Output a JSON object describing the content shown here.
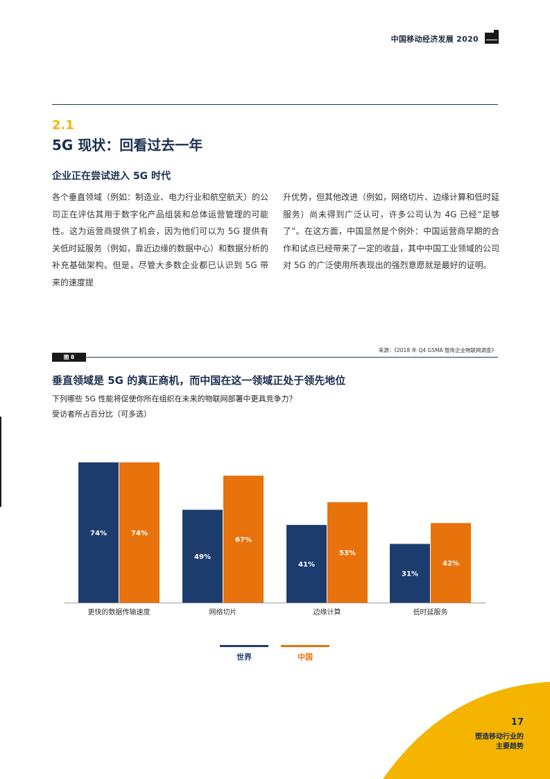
{
  "header": {
    "title": "中国移动经济发展 2020"
  },
  "section": {
    "number": "2.1",
    "title": "5G 现状：回看过去一年",
    "subheading": "企业正在尝试进入 5G 时代"
  },
  "body": {
    "col1": "各个垂直领域（例如：制造业、电力行业和航空航天）的公司正在评估其用于数字化产品组装和总体运营管理的可能性。这为运营商提供了机会，因为他们可以为 5G 提供有关低时延服务（例如，靠近边缘的数据中心）和数据分析的补充基础架构。但是，尽管大多数企业都已认识到 5G 带来的速度提",
    "col2": "升优势，但其他改进（例如，网络切片、边缘计算和低时延服务）尚未得到广泛认可，许多公司认为 4G 已经“足够了”。在这方面，中国显然是个例外：中国运营商早期的合作和试点已经带来了一定的收益，其中中国工业领域的公司对 5G 的广泛使用所表现出的强烈意愿就是最好的证明。"
  },
  "figure": {
    "label": "图 8",
    "source": "来源：《2018 年 Q4 GSMA 智库企业物联网调查》",
    "title": "垂直领域是 5G 的真正商机，而中国在这一领域正处于领先地位",
    "question": "下列哪些 5G 性能将促使你所在组织在未来的物联网部署中更具竞争力？",
    "note": "受访者所占百分比（可多选）"
  },
  "chart_data": {
    "type": "bar",
    "title": "垂直领域是 5G 的真正商机，而中国在这一领域正处于领先地位",
    "categories": [
      "更快的数据传输速度",
      "网络切片",
      "边缘计算",
      "低时延服务"
    ],
    "series": [
      {
        "name": "世界",
        "values": [
          74,
          49,
          41,
          31
        ],
        "color": "#1d3c6e"
      },
      {
        "name": "中国",
        "values": [
          74,
          67,
          53,
          42
        ],
        "color": "#e8720c"
      }
    ],
    "ylim": [
      0,
      100
    ],
    "value_suffix": "%",
    "grid": false,
    "legend": "bottom-center"
  },
  "footer": {
    "page": "17",
    "line1": "塑造移动行业的",
    "line2": "主要趋势"
  },
  "colors": {
    "navy": "#1d3c6e",
    "orange": "#e8720c",
    "yellow": "#f5b400"
  }
}
